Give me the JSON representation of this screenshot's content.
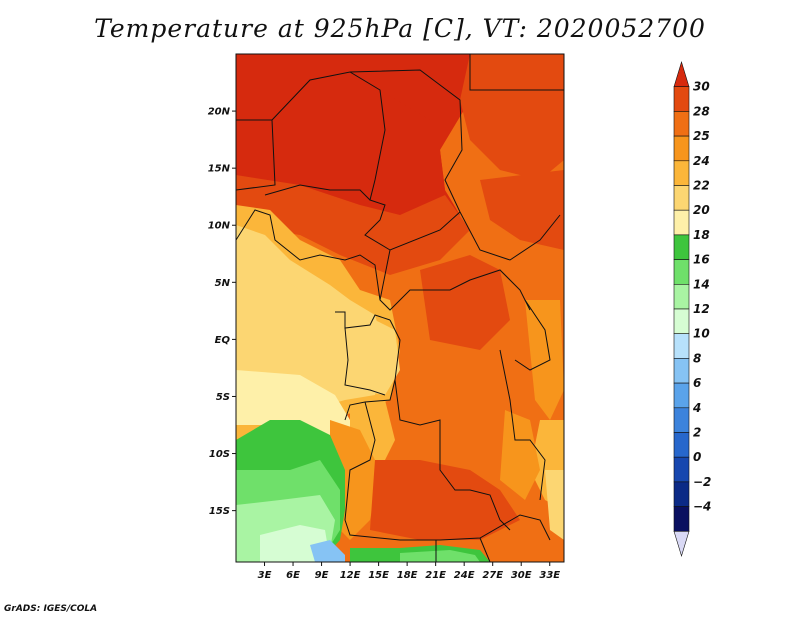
{
  "title": "Temperature at 925hPa [C], VT: 2020052700",
  "credit": "GrADS: IGES/COLA",
  "map": {
    "lon_range": [
      0,
      34.5
    ],
    "lat_range": [
      -19.5,
      25
    ],
    "lat_labels": [
      {
        "value": 20,
        "text": "20N"
      },
      {
        "value": 15,
        "text": "15N"
      },
      {
        "value": 10,
        "text": "10N"
      },
      {
        "value": 5,
        "text": "5N"
      },
      {
        "value": 0,
        "text": "EQ"
      },
      {
        "value": -5,
        "text": "5S"
      },
      {
        "value": -10,
        "text": "10S"
      },
      {
        "value": -15,
        "text": "15S"
      }
    ],
    "lon_labels": [
      {
        "value": 3,
        "text": "3E"
      },
      {
        "value": 6,
        "text": "6E"
      },
      {
        "value": 9,
        "text": "9E"
      },
      {
        "value": 12,
        "text": "12E"
      },
      {
        "value": 15,
        "text": "15E"
      },
      {
        "value": 18,
        "text": "18E"
      },
      {
        "value": 21,
        "text": "21E"
      },
      {
        "value": 24,
        "text": "24E"
      },
      {
        "value": 27,
        "text": "27E"
      },
      {
        "value": 30,
        "text": "30E"
      },
      {
        "value": 33,
        "text": "33E"
      }
    ]
  },
  "colorbar": {
    "labels": [
      "30",
      "28",
      "25",
      "24",
      "22",
      "20",
      "18",
      "16",
      "14",
      "12",
      "10",
      "8",
      "6",
      "4",
      "2",
      "0",
      "-2",
      "-4"
    ],
    "colors": [
      "#d62a0e",
      "#e34a10",
      "#f06f14",
      "#f7951c",
      "#fbb63a",
      "#fcd672",
      "#fef0a9",
      "#3ec53d",
      "#6fe06a",
      "#a9f4a3",
      "#d6fdd3",
      "#b7e1fb",
      "#86c3f4",
      "#5aa3ea",
      "#3c83dc",
      "#2767cc",
      "#1747af",
      "#0b2a86",
      "#0a1060",
      "#d9d9f5"
    ]
  }
}
